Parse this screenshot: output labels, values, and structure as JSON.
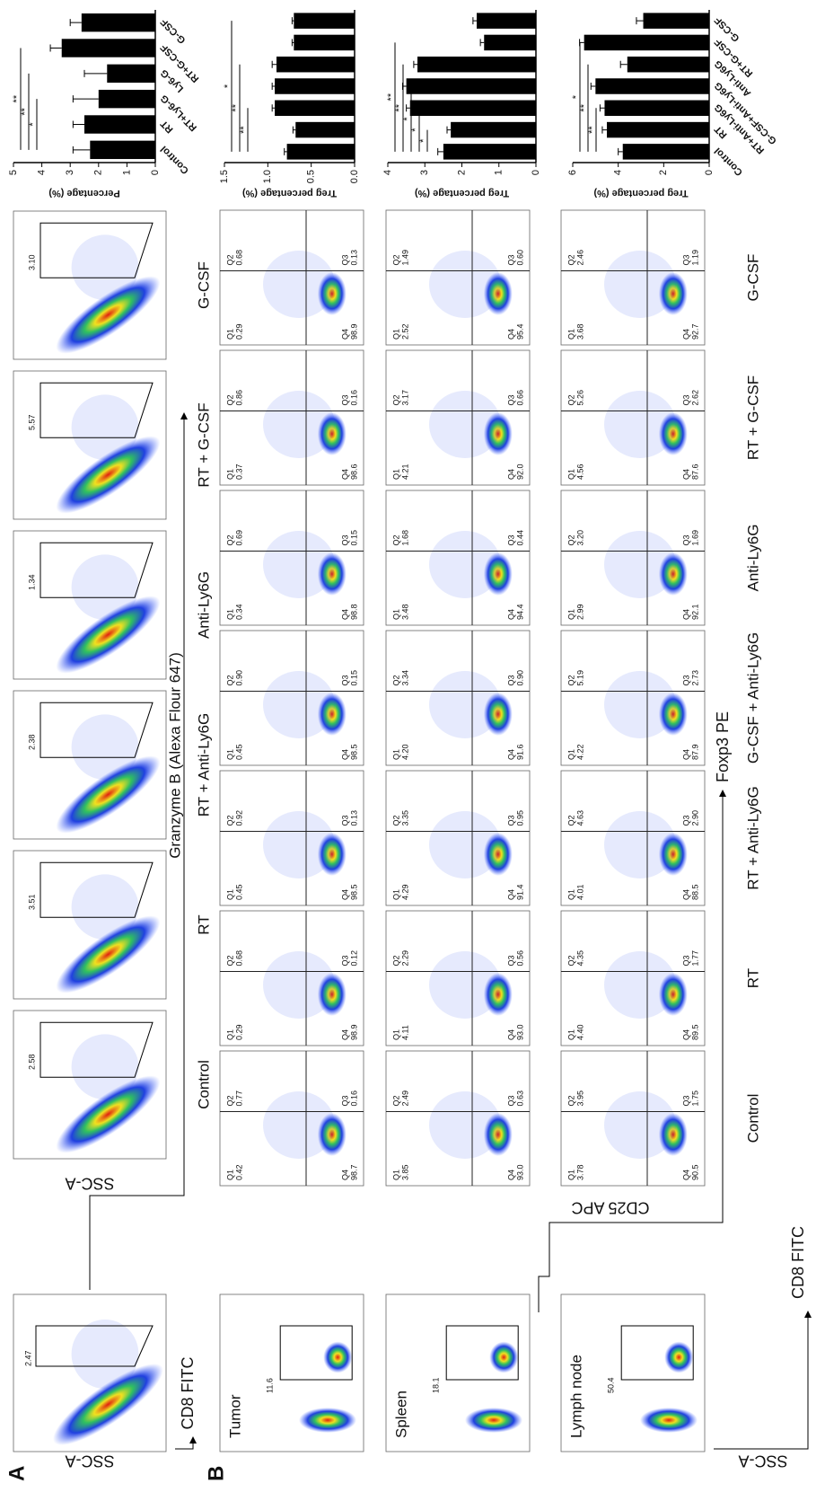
{
  "panel_labels": [
    "A",
    "B"
  ],
  "axis_labels": {
    "cd8": "CD8 FITC",
    "ssc": "SSC-A",
    "granzyme": "Granzyme B (Alexa Flour 647)",
    "cd25": "CD25 APC",
    "foxp3": "Foxp3 PE"
  },
  "row_a": {
    "first_gate": "2.47",
    "groups": [
      "Control",
      "RT",
      "RT + Anti-Ly6G",
      "Anti-Ly6G",
      "RT + G-CSF",
      "G-CSF"
    ],
    "gates": [
      "2.58",
      "3.51",
      "2.38",
      "1.34",
      "5.57",
      "3.10"
    ]
  },
  "row_b": {
    "groups": [
      "Control",
      "RT",
      "RT + Anti-Ly6G",
      "G-CSF + Anti-Ly6G",
      "Anti-Ly6G",
      "RT + G-CSF",
      "G-CSF"
    ],
    "quadrant_names": [
      "Q1",
      "Q2",
      "Q3",
      "Q4"
    ],
    "tissues": [
      {
        "name": "Tumor",
        "gate": "11.6",
        "quadrants": [
          [
            "0.42",
            "0.77",
            "0.16",
            "98.7"
          ],
          [
            "0.29",
            "0.68",
            "0.12",
            "98.9"
          ],
          [
            "0.45",
            "0.92",
            "0.13",
            "98.5"
          ],
          [
            "0.45",
            "0.90",
            "0.15",
            "98.5"
          ],
          [
            "0.34",
            "0.69",
            "0.15",
            "98.8"
          ],
          [
            "0.37",
            "0.86",
            "0.16",
            "98.6"
          ],
          [
            "0.29",
            "0.68",
            "0.13",
            "98.9"
          ]
        ]
      },
      {
        "name": "Spleen",
        "gate": "18.1",
        "quadrants": [
          [
            "3.85",
            "2.49",
            "0.63",
            "93.0"
          ],
          [
            "4.11",
            "2.29",
            "0.56",
            "93.0"
          ],
          [
            "4.29",
            "3.35",
            "0.95",
            "91.4"
          ],
          [
            "4.20",
            "3.34",
            "0.90",
            "91.6"
          ],
          [
            "3.48",
            "1.68",
            "0.44",
            "94.4"
          ],
          [
            "4.21",
            "3.17",
            "0.66",
            "92.0"
          ],
          [
            "2.52",
            "1.49",
            "0.60",
            "95.4"
          ]
        ]
      },
      {
        "name": "Lymph node",
        "gate": "50.4",
        "quadrants": [
          [
            "3.78",
            "3.95",
            "1.75",
            "90.5"
          ],
          [
            "4.40",
            "4.35",
            "1.77",
            "89.5"
          ],
          [
            "4.01",
            "4.63",
            "2.90",
            "88.5"
          ],
          [
            "4.22",
            "5.19",
            "2.73",
            "87.9"
          ],
          [
            "2.99",
            "3.20",
            "1.69",
            "92.1"
          ],
          [
            "4.56",
            "5.26",
            "2.62",
            "87.6"
          ],
          [
            "3.68",
            "2.46",
            "1.19",
            "92.7"
          ]
        ]
      }
    ]
  },
  "chart_data": [
    {
      "type": "bar",
      "ylabel": "Percentage (%)",
      "color": "#000000",
      "categories": [
        "Control",
        "RT",
        "RT+Ly6-G",
        "Ly6-G",
        "RT+G-CSF",
        "G-CSF"
      ],
      "values": [
        2.3,
        2.5,
        2.0,
        1.7,
        3.3,
        2.6
      ],
      "errors": [
        0.6,
        0.4,
        0.9,
        0.8,
        0.4,
        0.4
      ],
      "ylim": [
        0,
        5
      ],
      "yticks": [
        0,
        1,
        2,
        3,
        4,
        5
      ],
      "significance": [
        {
          "label": "*",
          "between": [
            0,
            2
          ]
        },
        {
          "label": "**",
          "between": [
            0,
            3
          ]
        },
        {
          "label": "**",
          "between": [
            0,
            4
          ]
        }
      ]
    },
    {
      "type": "bar",
      "ylabel": "Treg percentage (%)",
      "color": "#000000",
      "categories": [
        null,
        null,
        null,
        null,
        null,
        null,
        null
      ],
      "values": [
        0.78,
        0.68,
        0.92,
        0.92,
        0.9,
        0.7,
        0.7
      ],
      "errors": [
        0.03,
        0.03,
        0.03,
        0.03,
        0.05,
        0.02,
        0.02
      ],
      "ylim": [
        0,
        1.5
      ],
      "yticks": [
        {
          "value": 0,
          "label": "0.0"
        },
        0.5,
        {
          "value": 1,
          "label": "1.0"
        },
        1.5
      ],
      "significance": [
        {
          "label": "**",
          "between": [
            0,
            2
          ]
        },
        {
          "label": "**",
          "between": [
            0,
            4
          ]
        },
        {
          "label": "*",
          "between": [
            0,
            6
          ]
        }
      ]
    },
    {
      "type": "bar",
      "ylabel": "Treg percentage (%)",
      "color": "#000000",
      "categories": [
        null,
        null,
        null,
        null,
        null,
        null,
        null
      ],
      "values": [
        2.5,
        2.3,
        3.4,
        3.5,
        3.2,
        1.4,
        1.6
      ],
      "errors": [
        0.15,
        0.1,
        0.1,
        0.1,
        0.1,
        0.1,
        0.1
      ],
      "ylim": [
        0,
        4
      ],
      "yticks": [
        0,
        1,
        2,
        3,
        4
      ],
      "significance": [
        {
          "label": "*",
          "between": [
            0,
            1
          ]
        },
        {
          "label": "*",
          "between": [
            0,
            2
          ]
        },
        {
          "label": "*",
          "between": [
            0,
            3
          ]
        },
        {
          "label": "**",
          "between": [
            0,
            4
          ]
        },
        {
          "label": "**",
          "between": [
            0,
            5
          ]
        }
      ]
    },
    {
      "type": "bar",
      "ylabel": "Treg percentage (%)",
      "color": "#000000",
      "categories": [
        "Control",
        "RT",
        "RT+Anti-Ly6G",
        "G-CSF+Anti-Ly6G",
        "Anti-Ly6G",
        "RT+G-CSF",
        "G-CSF"
      ],
      "values": [
        3.8,
        4.5,
        4.6,
        5.0,
        3.6,
        5.5,
        2.9
      ],
      "errors": [
        0.2,
        0.2,
        0.2,
        0.2,
        0.3,
        0.2,
        0.3
      ],
      "ylim": [
        0,
        6
      ],
      "yticks": [
        0,
        2,
        4,
        6
      ],
      "significance": [
        {
          "label": "**",
          "between": [
            0,
            2
          ]
        },
        {
          "label": "**",
          "between": [
            0,
            4
          ]
        },
        {
          "label": "*",
          "between": [
            0,
            5
          ]
        }
      ]
    }
  ]
}
